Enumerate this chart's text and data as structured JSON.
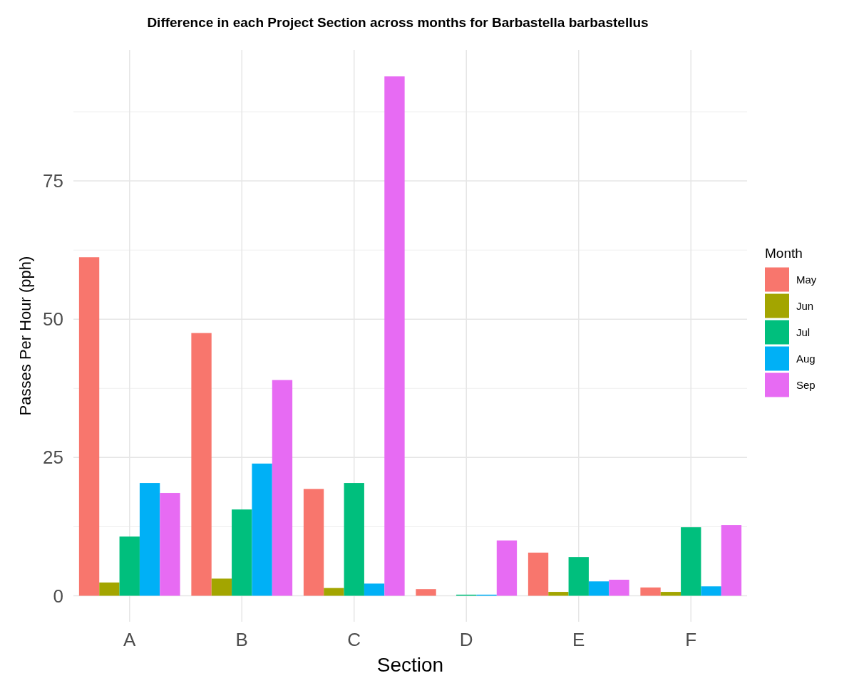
{
  "chart_data": {
    "type": "bar",
    "title": "Difference in each Project Section across months for Barbastella barbastellus",
    "xlabel": "Section",
    "ylabel": "Passes Per Hour (pph)",
    "legend_title": "Month",
    "categories": [
      "A",
      "B",
      "C",
      "D",
      "E",
      "F"
    ],
    "series": [
      {
        "name": "May",
        "color": "#f8766d",
        "values": [
          61.2,
          47.5,
          19.3,
          1.2,
          7.8,
          1.5
        ]
      },
      {
        "name": "Jun",
        "color": "#a3a500",
        "values": [
          2.4,
          3.1,
          1.4,
          0,
          0.7,
          0.7
        ]
      },
      {
        "name": "Jul",
        "color": "#00bf7d",
        "values": [
          10.7,
          15.6,
          20.4,
          0.2,
          7.0,
          12.4
        ]
      },
      {
        "name": "Aug",
        "color": "#00b0f6",
        "values": [
          20.4,
          23.9,
          2.2,
          0.2,
          2.6,
          1.7
        ]
      },
      {
        "name": "Sep",
        "color": "#e76bf3",
        "values": [
          18.6,
          39.0,
          93.9,
          10.0,
          2.9,
          12.8
        ]
      }
    ],
    "ylim": [
      -4.7,
      98.7
    ],
    "yticks": [
      0,
      25,
      50,
      75
    ],
    "grid": true,
    "legend": "right"
  }
}
